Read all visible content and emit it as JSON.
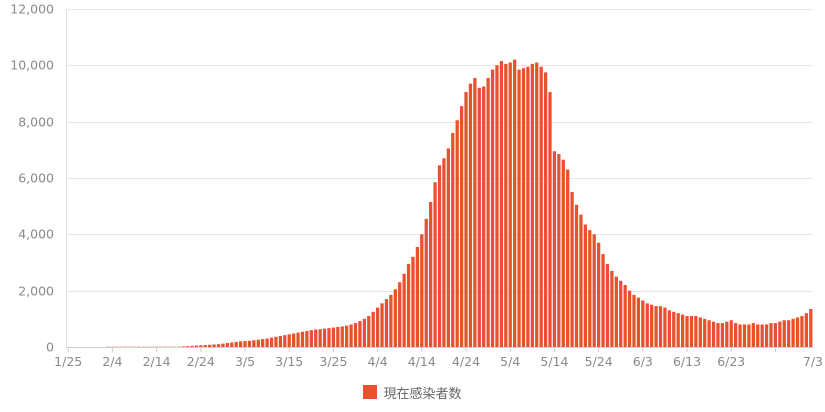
{
  "chart_data": {
    "type": "bar",
    "title": "",
    "xlabel": "",
    "ylabel": "",
    "ylim": [
      0,
      12000
    ],
    "yticks": [
      "0",
      "2,000",
      "4,000",
      "6,000",
      "8,000",
      "10,000",
      "12,000"
    ],
    "grid": true,
    "legend_position": "bottom-center",
    "series": [
      {
        "name": "現在感染者数",
        "color": "#e9502e",
        "values": [
          0,
          0,
          0,
          0,
          0,
          0,
          0,
          0,
          0,
          10,
          10,
          10,
          10,
          10,
          10,
          10,
          10,
          10,
          10,
          10,
          10,
          10,
          10,
          10,
          10,
          10,
          20,
          30,
          40,
          50,
          60,
          70,
          80,
          90,
          100,
          120,
          140,
          160,
          180,
          200,
          210,
          220,
          240,
          260,
          280,
          300,
          330,
          360,
          390,
          420,
          450,
          480,
          510,
          540,
          570,
          600,
          620,
          630,
          650,
          670,
          690,
          710,
          730,
          760,
          800,
          850,
          920,
          1000,
          1100,
          1250,
          1400,
          1550,
          1700,
          1850,
          2050,
          2300,
          2600,
          2950,
          3200,
          3550,
          4000,
          4550,
          5150,
          5850,
          6450,
          6700,
          7050,
          7600,
          8050,
          8550,
          9050,
          9350,
          9550,
          9200,
          9250,
          9550,
          9850,
          10000,
          10150,
          10050,
          10100,
          10200,
          9850,
          9900,
          9950,
          10050,
          10100,
          9950,
          9750,
          9050,
          6950,
          6850,
          6650,
          6300,
          5500,
          5050,
          4700,
          4350,
          4150,
          4000,
          3700,
          3300,
          2950,
          2700,
          2500,
          2350,
          2200,
          2000,
          1850,
          1750,
          1650,
          1550,
          1500,
          1450,
          1450,
          1400,
          1300,
          1250,
          1200,
          1150,
          1100,
          1100,
          1100,
          1050,
          1000,
          950,
          900,
          850,
          850,
          900,
          950,
          850,
          800,
          800,
          800,
          850,
          800,
          800,
          800,
          850,
          850,
          900,
          950,
          950,
          1000,
          1050,
          1100,
          1200,
          1350
        ]
      }
    ],
    "x_tick_labels": [
      "1/25",
      "2/4",
      "2/14",
      "2/24",
      "3/5",
      "3/15",
      "3/25",
      "4/4",
      "4/14",
      "4/24",
      "5/4",
      "5/14",
      "5/24",
      "6/3",
      "6/13",
      "6/23",
      "7/3"
    ]
  },
  "legend": {
    "label": "現在感染者数",
    "color": "#e9502e"
  }
}
